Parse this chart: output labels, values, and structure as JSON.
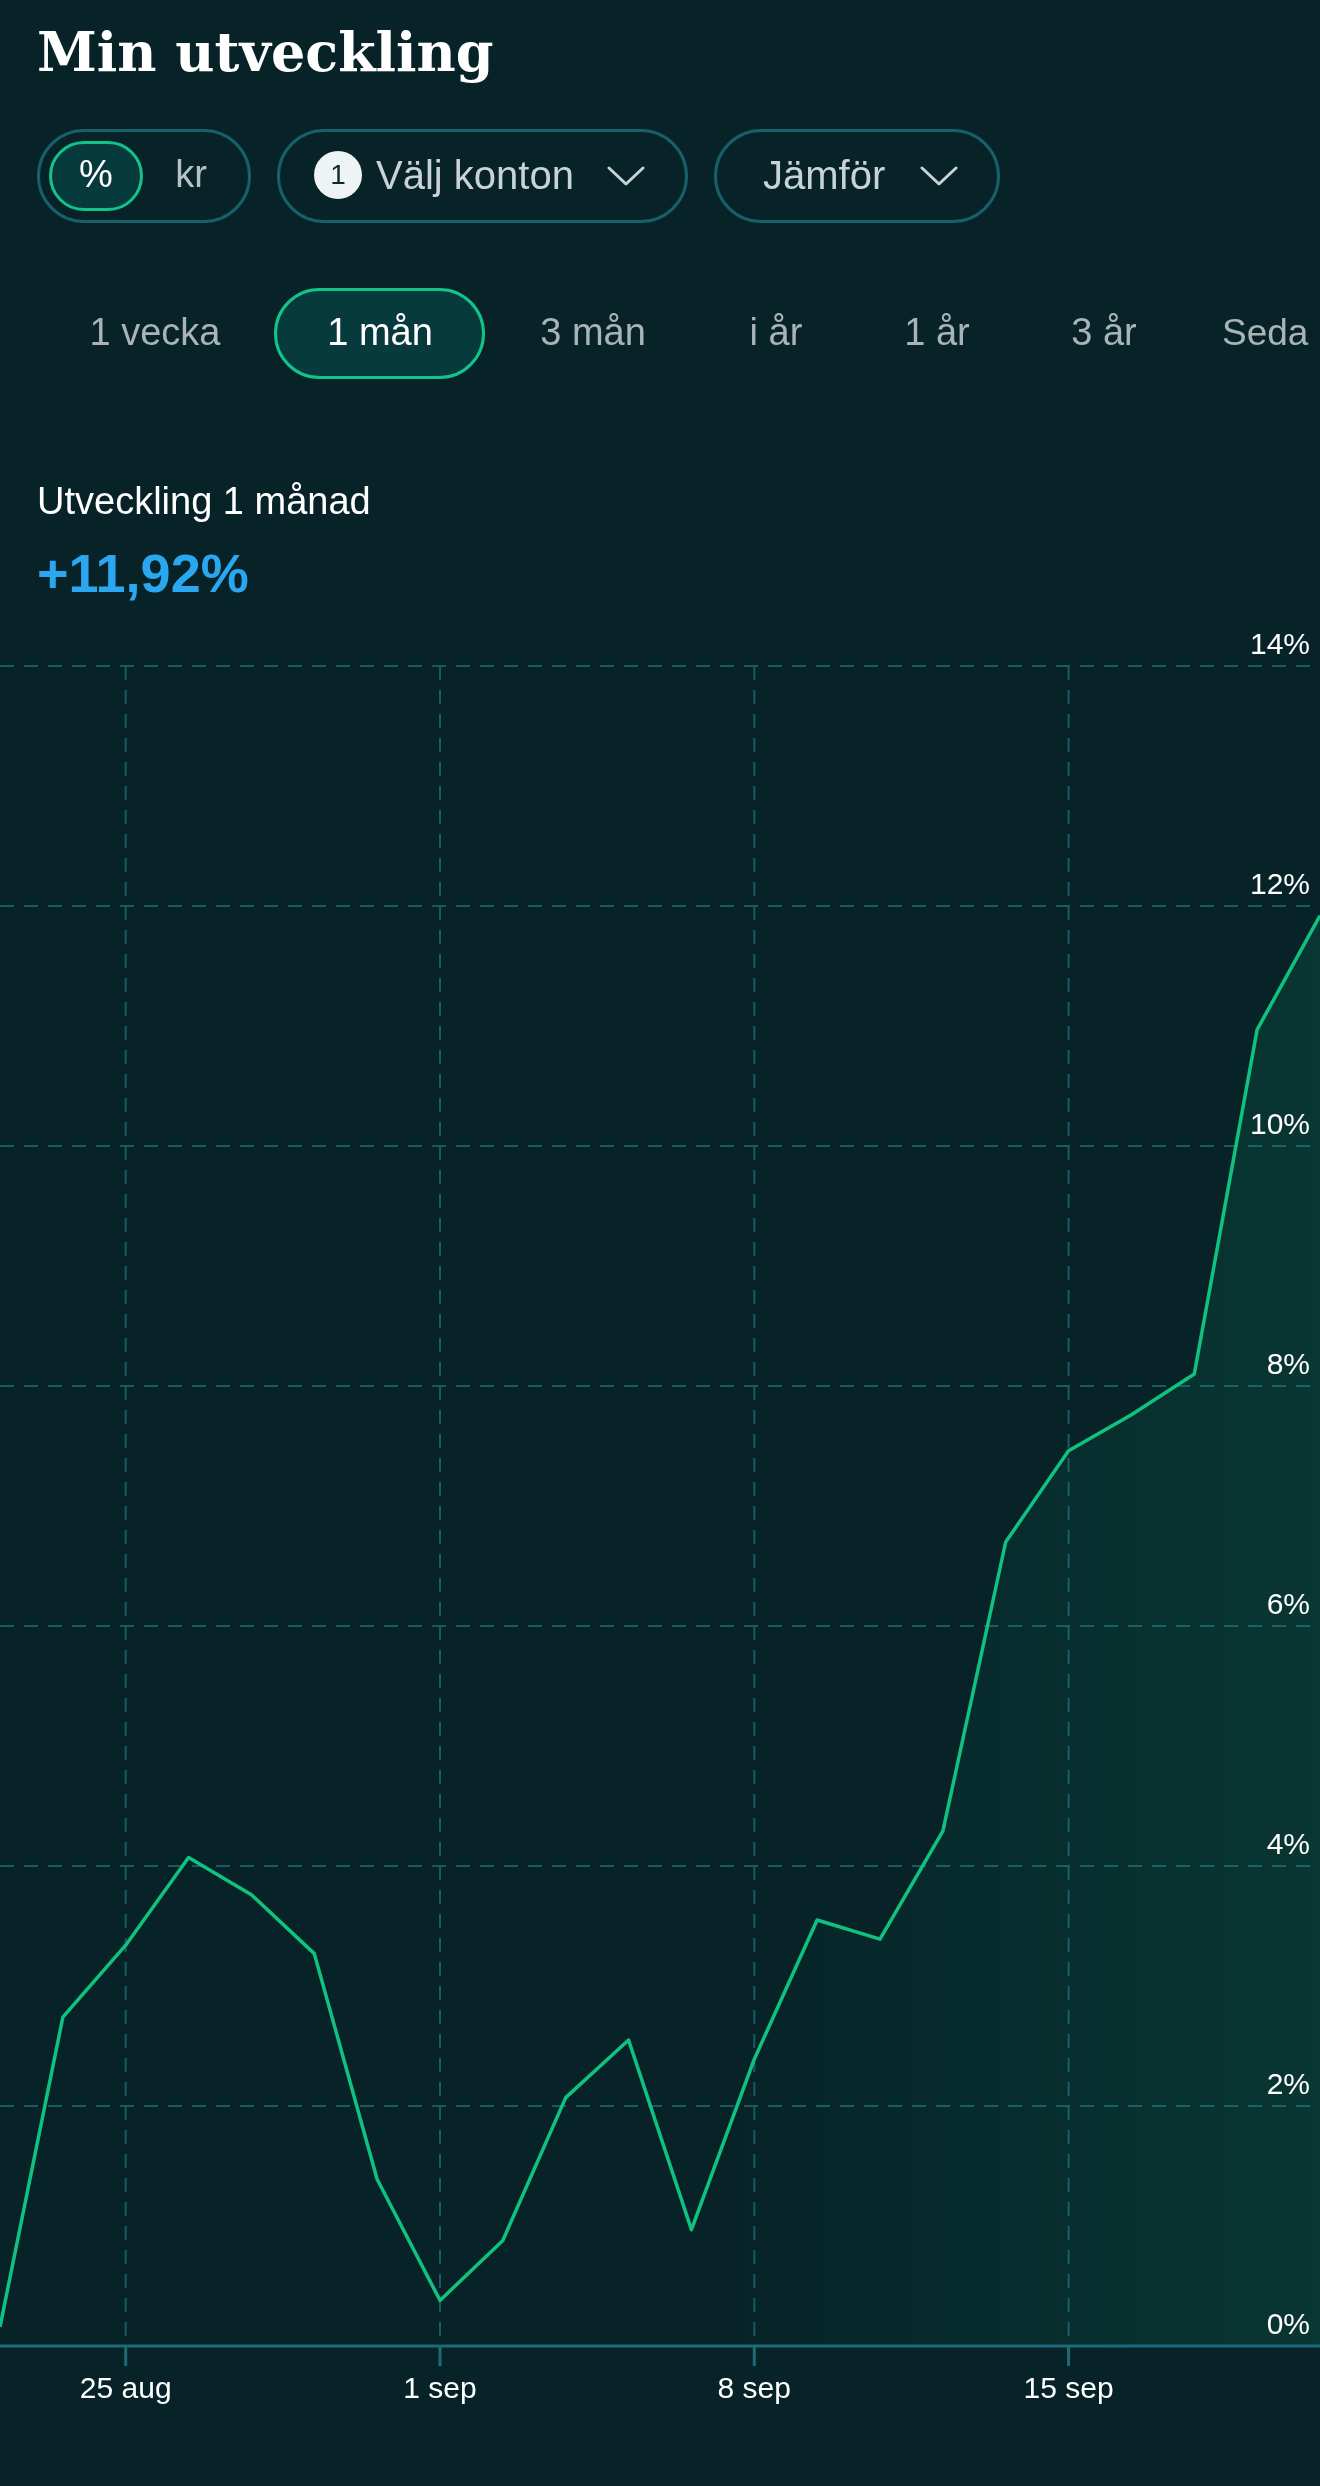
{
  "chart_data": {
    "type": "area",
    "title": "Min utveckling",
    "subtitle": "Utveckling 1 månad",
    "annotations": [
      "%",
      "kr",
      "1",
      "Välj konton",
      "Jämför",
      "1 vecka",
      "1 mån",
      "3 mån",
      "i år",
      "1 år",
      "3 år",
      "Seda",
      "+11,92%"
    ],
    "categories": [
      null,
      null,
      "25 aug",
      null,
      null,
      null,
      null,
      "1 sep",
      null,
      null,
      null,
      null,
      "8 sep",
      null,
      null,
      null,
      null,
      "15 sep",
      null,
      null,
      null,
      null
    ],
    "series": [
      {
        "color": "#10c27f",
        "values": [
          0.16,
          2.74,
          3.34,
          4.07,
          3.76,
          3.27,
          1.39,
          0.38,
          0.88,
          2.07,
          2.55,
          0.97,
          2.39,
          3.55,
          3.39,
          4.29,
          6.7,
          7.46,
          7.76,
          8.1,
          10.97,
          11.92
        ]
      }
    ],
    "ylim": [
      0,
      14
    ],
    "yticks": [
      {
        "value": 0,
        "label": "0%"
      },
      {
        "value": 2,
        "label": "2%"
      },
      {
        "value": 4,
        "label": "4%"
      },
      {
        "value": 6,
        "label": "6%"
      },
      {
        "value": 8,
        "label": "8%"
      },
      {
        "value": 10,
        "label": "10%"
      },
      {
        "value": 12,
        "label": "12%"
      },
      {
        "value": 14,
        "label": "14%"
      }
    ],
    "grid": true
  }
}
